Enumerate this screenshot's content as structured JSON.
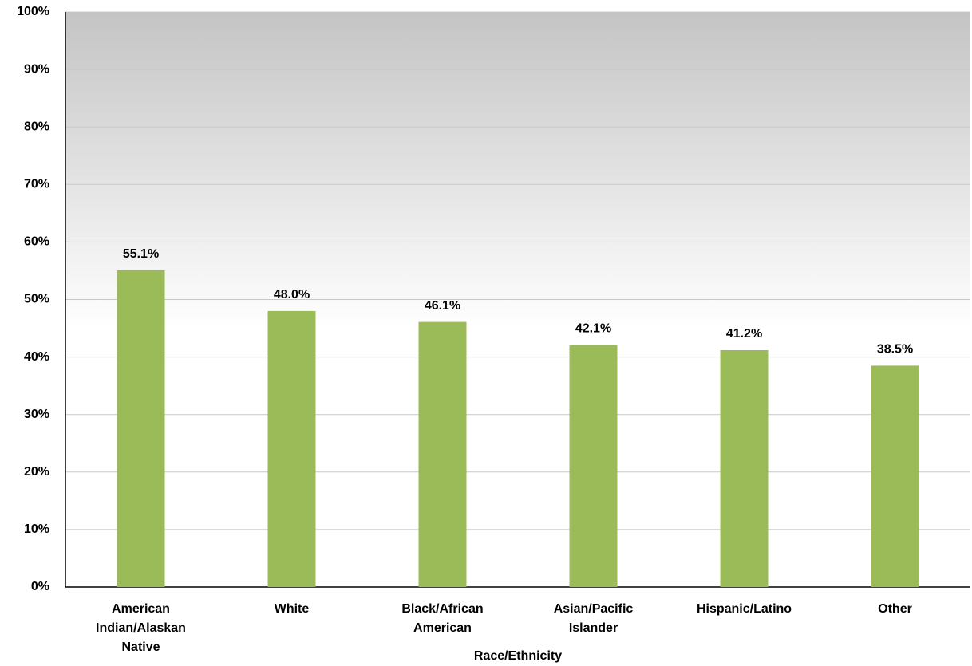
{
  "chart_data": {
    "type": "bar",
    "x_label": "Race/Ethnicity",
    "categories": [
      "American Indian/Alaskan Native",
      "White",
      "Black/African American",
      "Asian/Pacific Islander",
      "Hispanic/Latino",
      "Other"
    ],
    "values": [
      55.1,
      48.0,
      46.1,
      42.1,
      41.2,
      38.5
    ],
    "value_labels": [
      "55.1%",
      "48.0%",
      "46.1%",
      "42.1%",
      "41.2%",
      "38.5%"
    ],
    "color": "#9bbb59",
    "ylim": [
      0,
      100
    ],
    "yticks": [
      {
        "value": 0,
        "label": "0%"
      },
      {
        "value": 10,
        "label": "10%"
      },
      {
        "value": 20,
        "label": "20%"
      },
      {
        "value": 30,
        "label": "30%"
      },
      {
        "value": 40,
        "label": "40%"
      },
      {
        "value": 50,
        "label": "50%"
      },
      {
        "value": 60,
        "label": "60%"
      },
      {
        "value": 70,
        "label": "70%"
      },
      {
        "value": 80,
        "label": "80%"
      },
      {
        "value": 90,
        "label": "90%"
      },
      {
        "value": 100,
        "label": "100%"
      }
    ],
    "grid": true
  }
}
